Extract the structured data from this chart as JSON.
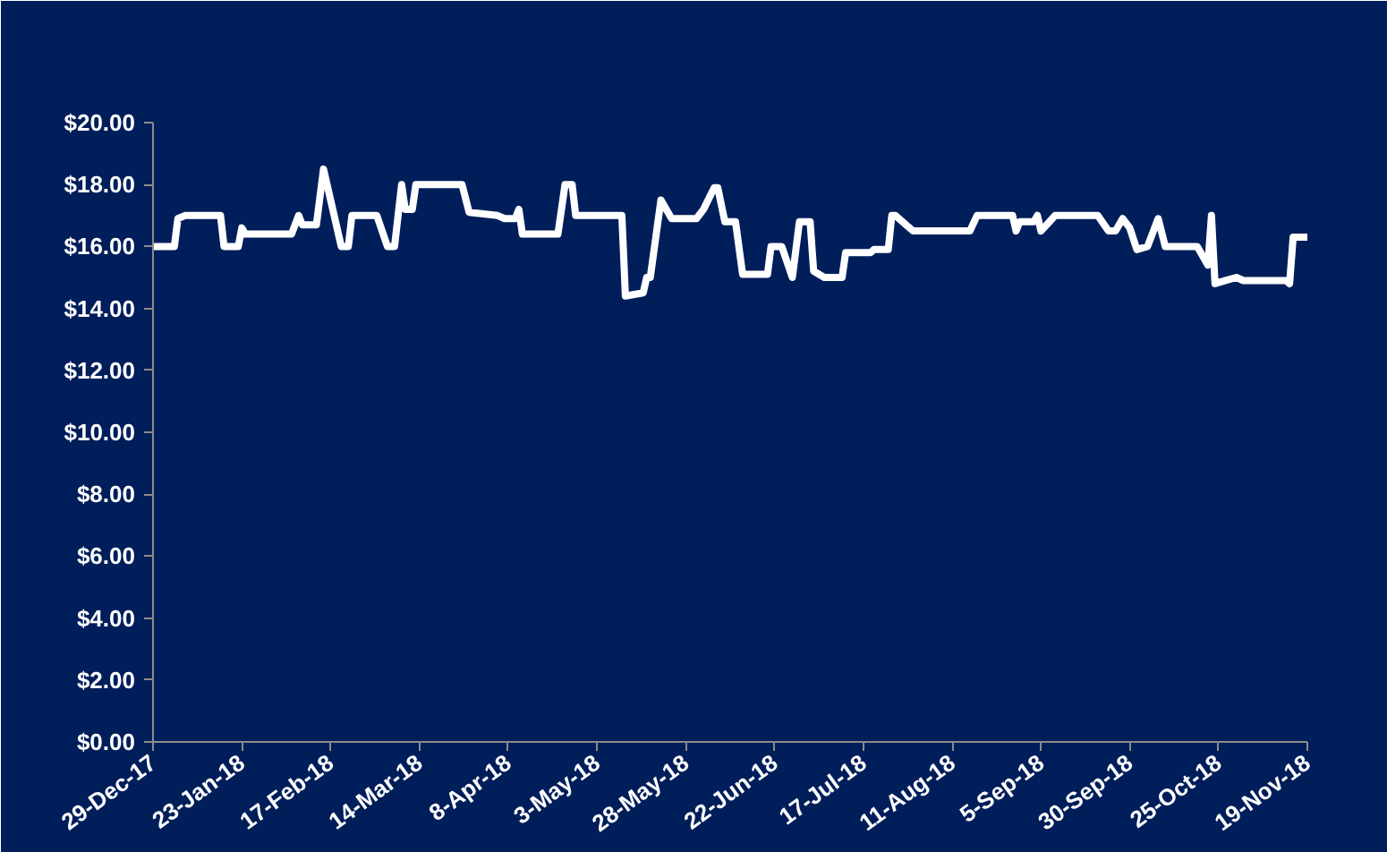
{
  "chart_data": {
    "type": "line",
    "x": [
      "2017-12-29",
      "2018-01-04",
      "2018-01-05",
      "2018-01-07",
      "2018-01-17",
      "2018-01-18",
      "2018-01-22",
      "2018-01-23",
      "2018-01-24",
      "2018-02-06",
      "2018-02-08",
      "2018-02-09",
      "2018-02-13",
      "2018-02-15",
      "2018-02-20",
      "2018-02-22",
      "2018-02-23",
      "2018-03-02",
      "2018-03-05",
      "2018-03-07",
      "2018-03-09",
      "2018-03-10",
      "2018-03-12",
      "2018-03-13",
      "2018-03-26",
      "2018-03-28",
      "2018-04-05",
      "2018-04-07",
      "2018-04-10",
      "2018-04-11",
      "2018-04-12",
      "2018-04-22",
      "2018-04-24",
      "2018-04-26",
      "2018-04-27",
      "2018-05-10",
      "2018-05-11",
      "2018-05-16",
      "2018-05-17",
      "2018-05-18",
      "2018-05-21",
      "2018-05-24",
      "2018-05-31",
      "2018-06-02",
      "2018-06-05",
      "2018-06-06",
      "2018-06-08",
      "2018-06-11",
      "2018-06-13",
      "2018-06-20",
      "2018-06-21",
      "2018-06-24",
      "2018-06-27",
      "2018-06-29",
      "2018-07-02",
      "2018-07-03",
      "2018-07-06",
      "2018-07-11",
      "2018-07-12",
      "2018-07-19",
      "2018-07-20",
      "2018-07-24",
      "2018-07-25",
      "2018-07-26",
      "2018-07-31",
      "2018-08-16",
      "2018-08-18",
      "2018-08-28",
      "2018-08-29",
      "2018-08-30",
      "2018-09-03",
      "2018-09-04",
      "2018-09-05",
      "2018-09-09",
      "2018-09-21",
      "2018-09-24",
      "2018-09-26",
      "2018-09-28",
      "2018-09-30",
      "2018-10-02",
      "2018-10-05",
      "2018-10-08",
      "2018-10-10",
      "2018-10-19",
      "2018-10-22",
      "2018-10-23",
      "2018-10-24",
      "2018-10-27",
      "2018-10-30",
      "2018-11-01",
      "2018-11-13",
      "2018-11-14",
      "2018-11-15",
      "2018-11-19"
    ],
    "series": [
      {
        "color": "#ffffff",
        "values": [
          16.0,
          16.0,
          16.9,
          17.0,
          17.0,
          16.0,
          16.0,
          16.6,
          16.4,
          16.4,
          17.0,
          16.7,
          16.7,
          18.5,
          16.0,
          16.0,
          17.0,
          17.0,
          16.0,
          16.0,
          18.0,
          17.2,
          17.2,
          18.0,
          18.0,
          17.1,
          17.0,
          16.9,
          16.9,
          17.2,
          16.4,
          16.4,
          18.0,
          18.0,
          17.0,
          17.0,
          14.4,
          14.5,
          15.0,
          15.0,
          17.5,
          16.9,
          16.9,
          17.2,
          17.9,
          17.9,
          16.8,
          16.8,
          15.1,
          15.1,
          16.0,
          16.0,
          15.0,
          16.8,
          16.8,
          15.2,
          15.0,
          15.0,
          15.8,
          15.8,
          15.9,
          15.9,
          17.0,
          17.0,
          16.5,
          16.5,
          17.0,
          17.0,
          16.5,
          16.8,
          16.8,
          17.0,
          16.5,
          17.0,
          17.0,
          16.5,
          16.5,
          16.9,
          16.6,
          15.9,
          16.0,
          16.9,
          16.0,
          16.0,
          15.4,
          17.0,
          14.8,
          14.9,
          15.0,
          14.9,
          14.9,
          14.8,
          16.3,
          16.3
        ]
      }
    ],
    "xlim": [
      "2017-12-29",
      "2018-11-19"
    ],
    "xticks": [
      {
        "value": "2017-12-29",
        "label": "29-Dec-17"
      },
      {
        "value": "2018-01-23",
        "label": "23-Jan-18"
      },
      {
        "value": "2018-02-17",
        "label": "17-Feb-18"
      },
      {
        "value": "2018-03-14",
        "label": "14-Mar-18"
      },
      {
        "value": "2018-04-08",
        "label": "8-Apr-18"
      },
      {
        "value": "2018-05-03",
        "label": "3-May-18"
      },
      {
        "value": "2018-05-28",
        "label": "28-May-18"
      },
      {
        "value": "2018-06-22",
        "label": "22-Jun-18"
      },
      {
        "value": "2018-07-17",
        "label": "17-Jul-18"
      },
      {
        "value": "2018-08-11",
        "label": "11-Aug-18"
      },
      {
        "value": "2018-09-05",
        "label": "5-Sep-18"
      },
      {
        "value": "2018-09-30",
        "label": "30-Sep-18"
      },
      {
        "value": "2018-10-25",
        "label": "25-Oct-18"
      },
      {
        "value": "2018-11-19",
        "label": "19-Nov-18"
      }
    ],
    "ylim": [
      0,
      20
    ],
    "yticks": [
      {
        "value": 0,
        "label": "$0.00"
      },
      {
        "value": 2,
        "label": "$2.00"
      },
      {
        "value": 4,
        "label": "$4.00"
      },
      {
        "value": 6,
        "label": "$6.00"
      },
      {
        "value": 8,
        "label": "$8.00"
      },
      {
        "value": 10,
        "label": "$10.00"
      },
      {
        "value": 12,
        "label": "$12.00"
      },
      {
        "value": 14,
        "label": "$14.00"
      },
      {
        "value": 16,
        "label": "$16.00"
      },
      {
        "value": 18,
        "label": "$18.00"
      },
      {
        "value": 20,
        "label": "$20.00"
      }
    ],
    "grid": false,
    "marker": "none",
    "line_style": "solid"
  }
}
